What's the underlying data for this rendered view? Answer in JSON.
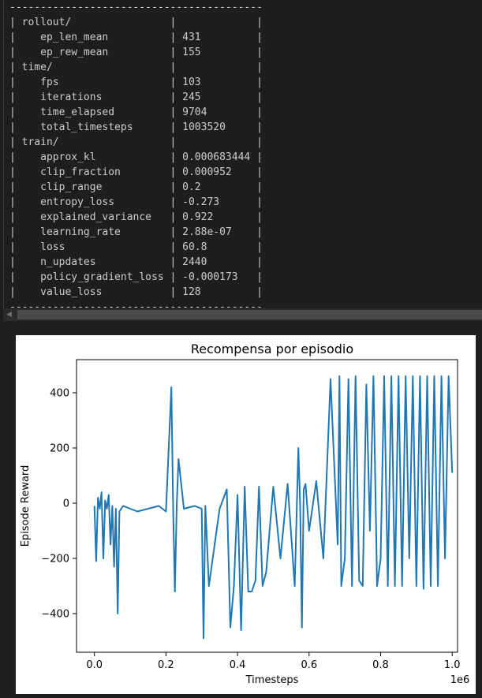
{
  "console": {
    "rule": "-----------------------------------------",
    "rows": [
      {
        "key": "rollout/",
        "value": "",
        "section": true
      },
      {
        "key": "ep_len_mean",
        "value": "431"
      },
      {
        "key": "ep_rew_mean",
        "value": "155"
      },
      {
        "key": "time/",
        "value": "",
        "section": true
      },
      {
        "key": "fps",
        "value": "103"
      },
      {
        "key": "iterations",
        "value": "245"
      },
      {
        "key": "time_elapsed",
        "value": "9704"
      },
      {
        "key": "total_timesteps",
        "value": "1003520"
      },
      {
        "key": "train/",
        "value": "",
        "section": true
      },
      {
        "key": "approx_kl",
        "value": "0.000683444"
      },
      {
        "key": "clip_fraction",
        "value": "0.000952"
      },
      {
        "key": "clip_range",
        "value": "0.2"
      },
      {
        "key": "entropy_loss",
        "value": "-0.273"
      },
      {
        "key": "explained_variance",
        "value": "0.922"
      },
      {
        "key": "learning_rate",
        "value": "2.88e-07"
      },
      {
        "key": "loss",
        "value": "60.8"
      },
      {
        "key": "n_updates",
        "value": "2440"
      },
      {
        "key": "policy_gradient_loss",
        "value": "-0.000173"
      },
      {
        "key": "value_loss",
        "value": "128"
      }
    ]
  },
  "chart_data": {
    "type": "line",
    "title": "Recompensa por episodio",
    "xlabel": "Timesteps",
    "ylabel": "Episode Reward",
    "x_offset_label": "1e6",
    "xlim": [
      -0.05,
      1.015
    ],
    "ylim": [
      -540,
      520
    ],
    "xticks": [
      0.0,
      0.2,
      0.4,
      0.6,
      0.8,
      1.0
    ],
    "xtick_labels": [
      "0.0",
      "0.2",
      "0.4",
      "0.6",
      "0.8",
      "1.0"
    ],
    "yticks": [
      -400,
      -200,
      0,
      200,
      400
    ],
    "ytick_labels": [
      "−400",
      "−200",
      "0",
      "200",
      "400"
    ],
    "grid": false,
    "line_color": "#1f77b4",
    "series": [
      {
        "x": [
          0.0,
          0.005,
          0.01,
          0.015,
          0.02,
          0.025,
          0.03,
          0.035,
          0.04,
          0.045,
          0.05,
          0.055,
          0.06,
          0.065,
          0.07,
          0.08,
          0.1,
          0.12,
          0.15,
          0.18,
          0.2,
          0.215,
          0.22,
          0.225,
          0.23,
          0.235,
          0.25,
          0.28,
          0.3,
          0.305,
          0.31,
          0.32,
          0.35,
          0.37,
          0.38,
          0.39,
          0.4,
          0.41,
          0.42,
          0.43,
          0.44,
          0.45,
          0.46,
          0.47,
          0.48,
          0.5,
          0.52,
          0.54,
          0.56,
          0.57,
          0.575,
          0.58,
          0.585,
          0.59,
          0.6,
          0.62,
          0.64,
          0.66,
          0.68,
          0.685,
          0.69,
          0.7,
          0.71,
          0.72,
          0.73,
          0.74,
          0.75,
          0.76,
          0.77,
          0.78,
          0.79,
          0.8,
          0.81,
          0.82,
          0.83,
          0.84,
          0.85,
          0.86,
          0.87,
          0.88,
          0.89,
          0.9,
          0.91,
          0.92,
          0.93,
          0.94,
          0.95,
          0.96,
          0.97,
          0.98,
          0.99,
          1.0
        ],
        "y": [
          -10,
          -210,
          20,
          -20,
          40,
          -200,
          10,
          -20,
          30,
          -150,
          -10,
          -230,
          -20,
          -400,
          -30,
          -10,
          -20,
          -30,
          -20,
          -10,
          -30,
          420,
          -20,
          -320,
          -10,
          160,
          -20,
          -10,
          -20,
          -490,
          -10,
          -300,
          -20,
          50,
          -450,
          -300,
          30,
          -460,
          60,
          -320,
          -320,
          -280,
          60,
          -300,
          -250,
          60,
          -200,
          70,
          -300,
          200,
          -10,
          -450,
          50,
          70,
          -100,
          80,
          -200,
          450,
          -150,
          460,
          -300,
          -200,
          450,
          -300,
          460,
          -280,
          -300,
          430,
          -100,
          460,
          -300,
          -200,
          460,
          -300,
          460,
          -300,
          460,
          -300,
          460,
          -200,
          460,
          -300,
          460,
          -310,
          460,
          -300,
          460,
          -300,
          460,
          -200,
          460,
          110
        ]
      }
    ]
  }
}
